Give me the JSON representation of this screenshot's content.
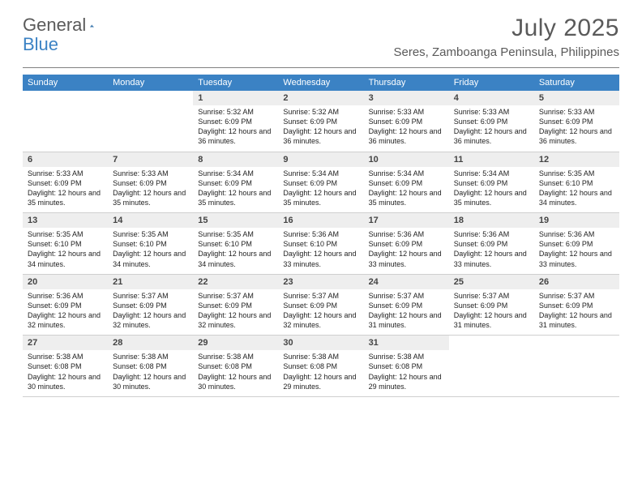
{
  "logo": {
    "general": "General",
    "blue": "Blue",
    "shape_color": "#2f6fa8"
  },
  "header": {
    "title": "July 2025",
    "location": "Seres, Zamboanga Peninsula, Philippines"
  },
  "colors": {
    "header_bg": "#3b82c4",
    "header_text": "#ffffff",
    "daynum_bg": "#eeeeee",
    "text": "#222222"
  },
  "day_names": [
    "Sunday",
    "Monday",
    "Tuesday",
    "Wednesday",
    "Thursday",
    "Friday",
    "Saturday"
  ],
  "weeks": [
    {
      "nums": [
        "",
        "",
        "1",
        "2",
        "3",
        "4",
        "5"
      ],
      "cells": [
        "",
        "",
        "Sunrise: 5:32 AM\nSunset: 6:09 PM\nDaylight: 12 hours and 36 minutes.",
        "Sunrise: 5:32 AM\nSunset: 6:09 PM\nDaylight: 12 hours and 36 minutes.",
        "Sunrise: 5:33 AM\nSunset: 6:09 PM\nDaylight: 12 hours and 36 minutes.",
        "Sunrise: 5:33 AM\nSunset: 6:09 PM\nDaylight: 12 hours and 36 minutes.",
        "Sunrise: 5:33 AM\nSunset: 6:09 PM\nDaylight: 12 hours and 36 minutes."
      ]
    },
    {
      "nums": [
        "6",
        "7",
        "8",
        "9",
        "10",
        "11",
        "12"
      ],
      "cells": [
        "Sunrise: 5:33 AM\nSunset: 6:09 PM\nDaylight: 12 hours and 35 minutes.",
        "Sunrise: 5:33 AM\nSunset: 6:09 PM\nDaylight: 12 hours and 35 minutes.",
        "Sunrise: 5:34 AM\nSunset: 6:09 PM\nDaylight: 12 hours and 35 minutes.",
        "Sunrise: 5:34 AM\nSunset: 6:09 PM\nDaylight: 12 hours and 35 minutes.",
        "Sunrise: 5:34 AM\nSunset: 6:09 PM\nDaylight: 12 hours and 35 minutes.",
        "Sunrise: 5:34 AM\nSunset: 6:09 PM\nDaylight: 12 hours and 35 minutes.",
        "Sunrise: 5:35 AM\nSunset: 6:10 PM\nDaylight: 12 hours and 34 minutes."
      ]
    },
    {
      "nums": [
        "13",
        "14",
        "15",
        "16",
        "17",
        "18",
        "19"
      ],
      "cells": [
        "Sunrise: 5:35 AM\nSunset: 6:10 PM\nDaylight: 12 hours and 34 minutes.",
        "Sunrise: 5:35 AM\nSunset: 6:10 PM\nDaylight: 12 hours and 34 minutes.",
        "Sunrise: 5:35 AM\nSunset: 6:10 PM\nDaylight: 12 hours and 34 minutes.",
        "Sunrise: 5:36 AM\nSunset: 6:10 PM\nDaylight: 12 hours and 33 minutes.",
        "Sunrise: 5:36 AM\nSunset: 6:09 PM\nDaylight: 12 hours and 33 minutes.",
        "Sunrise: 5:36 AM\nSunset: 6:09 PM\nDaylight: 12 hours and 33 minutes.",
        "Sunrise: 5:36 AM\nSunset: 6:09 PM\nDaylight: 12 hours and 33 minutes."
      ]
    },
    {
      "nums": [
        "20",
        "21",
        "22",
        "23",
        "24",
        "25",
        "26"
      ],
      "cells": [
        "Sunrise: 5:36 AM\nSunset: 6:09 PM\nDaylight: 12 hours and 32 minutes.",
        "Sunrise: 5:37 AM\nSunset: 6:09 PM\nDaylight: 12 hours and 32 minutes.",
        "Sunrise: 5:37 AM\nSunset: 6:09 PM\nDaylight: 12 hours and 32 minutes.",
        "Sunrise: 5:37 AM\nSunset: 6:09 PM\nDaylight: 12 hours and 32 minutes.",
        "Sunrise: 5:37 AM\nSunset: 6:09 PM\nDaylight: 12 hours and 31 minutes.",
        "Sunrise: 5:37 AM\nSunset: 6:09 PM\nDaylight: 12 hours and 31 minutes.",
        "Sunrise: 5:37 AM\nSunset: 6:09 PM\nDaylight: 12 hours and 31 minutes."
      ]
    },
    {
      "nums": [
        "27",
        "28",
        "29",
        "30",
        "31",
        "",
        ""
      ],
      "cells": [
        "Sunrise: 5:38 AM\nSunset: 6:08 PM\nDaylight: 12 hours and 30 minutes.",
        "Sunrise: 5:38 AM\nSunset: 6:08 PM\nDaylight: 12 hours and 30 minutes.",
        "Sunrise: 5:38 AM\nSunset: 6:08 PM\nDaylight: 12 hours and 30 minutes.",
        "Sunrise: 5:38 AM\nSunset: 6:08 PM\nDaylight: 12 hours and 29 minutes.",
        "Sunrise: 5:38 AM\nSunset: 6:08 PM\nDaylight: 12 hours and 29 minutes.",
        "",
        ""
      ]
    }
  ]
}
